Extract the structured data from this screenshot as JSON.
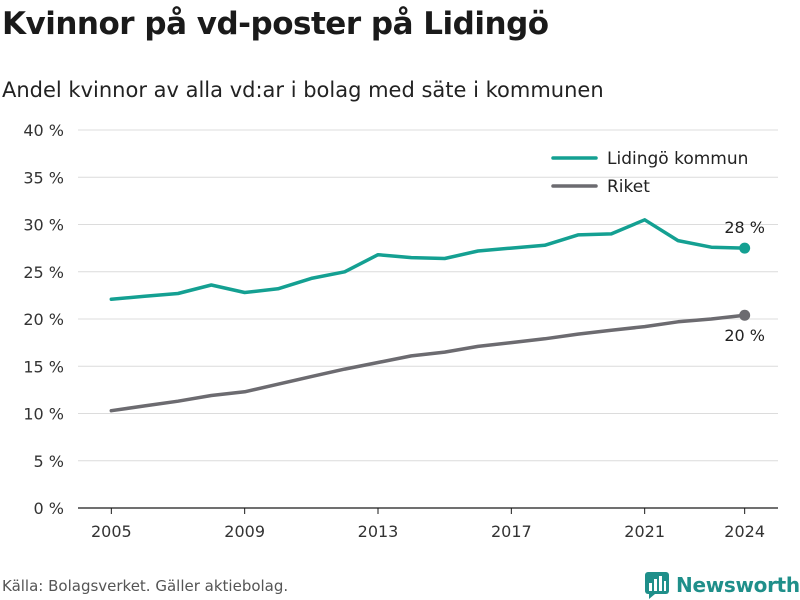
{
  "title": "Kvinnor på vd-poster på Lidingö",
  "subtitle": "Andel kvinnor av alla vd:ar i bolag med säte i kommunen",
  "source": "Källa: Bolagsverket. Gäller aktiebolag.",
  "brand": "Newsworthy",
  "chart_data": {
    "type": "line",
    "x": [
      2005,
      2006,
      2007,
      2008,
      2009,
      2010,
      2011,
      2012,
      2013,
      2014,
      2015,
      2016,
      2017,
      2018,
      2019,
      2020,
      2021,
      2022,
      2023,
      2024
    ],
    "series": [
      {
        "name": "Lidingö kommun",
        "color": "#14a092",
        "values": [
          22.1,
          22.4,
          22.7,
          23.6,
          22.8,
          23.2,
          24.3,
          25.0,
          26.8,
          26.5,
          26.4,
          27.2,
          27.5,
          27.8,
          28.9,
          29.0,
          30.5,
          28.3,
          27.6,
          27.5
        ],
        "end_label": "28 %"
      },
      {
        "name": "Riket",
        "color": "#6c6b70",
        "values": [
          10.3,
          10.8,
          11.3,
          11.9,
          12.3,
          13.1,
          13.9,
          14.7,
          15.4,
          16.1,
          16.5,
          17.1,
          17.5,
          17.9,
          18.4,
          18.8,
          19.2,
          19.7,
          20.0,
          20.4
        ],
        "end_label": "20 %"
      }
    ],
    "x_ticks": [
      2005,
      2009,
      2013,
      2017,
      2021,
      2024
    ],
    "x_tick_labels": [
      "2005",
      "2009",
      "2013",
      "2017",
      "2021",
      "2024"
    ],
    "y_ticks": [
      0,
      5,
      10,
      15,
      20,
      25,
      30,
      35,
      40
    ],
    "y_tick_labels": [
      "0 %",
      "5 %",
      "10 %",
      "15 %",
      "20 %",
      "25 %",
      "30 %",
      "35 %",
      "40 %"
    ],
    "ylim": [
      0,
      40
    ],
    "xlim": [
      2004,
      2025
    ],
    "grid": true,
    "legend_position": "top-right"
  }
}
